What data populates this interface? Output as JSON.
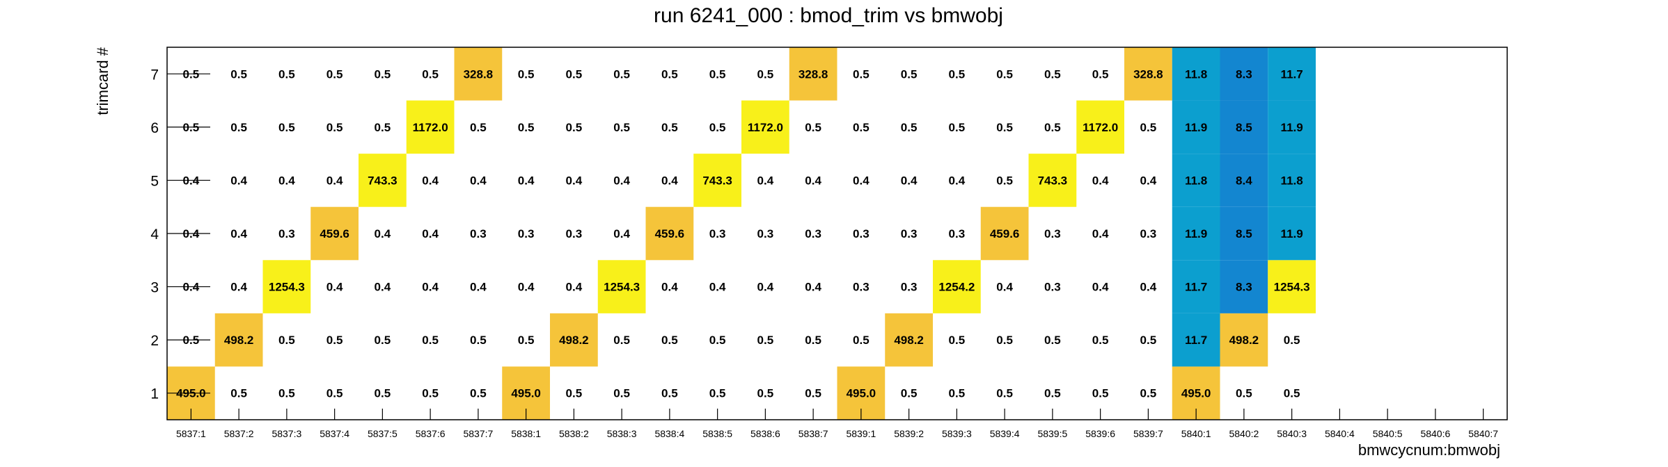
{
  "chart_data": {
    "type": "heatmap",
    "title": "run 6241_000 : bmod_trim vs bmwobj",
    "xlabel": "bmwcycnum:bmwobj",
    "ylabel": "trimcard #",
    "x_categories": [
      "5837:1",
      "5837:2",
      "5837:3",
      "5837:4",
      "5837:5",
      "5837:6",
      "5837:7",
      "5838:1",
      "5838:2",
      "5838:3",
      "5838:4",
      "5838:5",
      "5838:6",
      "5838:7",
      "5839:1",
      "5839:2",
      "5839:3",
      "5839:4",
      "5839:5",
      "5839:6",
      "5839:7",
      "5840:1",
      "5840:2",
      "5840:3",
      "5840:4",
      "5840:5",
      "5840:6",
      "5840:7"
    ],
    "y_categories": [
      "1",
      "2",
      "3",
      "4",
      "5",
      "6",
      "7"
    ],
    "grid": false,
    "rows": [
      {
        "y": "1",
        "labels": [
          "495.0",
          "0.5",
          "0.5",
          "0.5",
          "0.5",
          "0.5",
          "0.5",
          "495.0",
          "0.5",
          "0.5",
          "0.5",
          "0.5",
          "0.5",
          "0.5",
          "495.0",
          "0.5",
          "0.5",
          "0.5",
          "0.5",
          "0.5",
          "0.5",
          "495.0",
          "0.5",
          "0.5"
        ]
      },
      {
        "y": "2",
        "labels": [
          "0.5",
          "498.2",
          "0.5",
          "0.5",
          "0.5",
          "0.5",
          "0.5",
          "0.5",
          "498.2",
          "0.5",
          "0.5",
          "0.5",
          "0.5",
          "0.5",
          "0.5",
          "498.2",
          "0.5",
          "0.5",
          "0.5",
          "0.5",
          "0.5",
          "11.7",
          "498.2",
          "0.5"
        ]
      },
      {
        "y": "3",
        "labels": [
          "0.4",
          "0.4",
          "1254.3",
          "0.4",
          "0.4",
          "0.4",
          "0.4",
          "0.4",
          "0.4",
          "1254.3",
          "0.4",
          "0.4",
          "0.4",
          "0.4",
          "0.3",
          "0.3",
          "1254.2",
          "0.4",
          "0.3",
          "0.4",
          "0.4",
          "11.7",
          "8.3",
          "1254.3"
        ]
      },
      {
        "y": "4",
        "labels": [
          "0.4",
          "0.4",
          "0.3",
          "459.6",
          "0.4",
          "0.4",
          "0.3",
          "0.3",
          "0.3",
          "0.4",
          "459.6",
          "0.3",
          "0.3",
          "0.3",
          "0.3",
          "0.3",
          "0.3",
          "459.6",
          "0.3",
          "0.4",
          "0.3",
          "11.9",
          "8.5",
          "11.9"
        ]
      },
      {
        "y": "5",
        "labels": [
          "0.4",
          "0.4",
          "0.4",
          "0.4",
          "743.3",
          "0.4",
          "0.4",
          "0.4",
          "0.4",
          "0.4",
          "0.4",
          "743.3",
          "0.4",
          "0.4",
          "0.4",
          "0.4",
          "0.4",
          "0.5",
          "743.3",
          "0.4",
          "0.4",
          "11.8",
          "8.4",
          "11.8"
        ]
      },
      {
        "y": "6",
        "labels": [
          "0.5",
          "0.5",
          "0.5",
          "0.5",
          "0.5",
          "1172.0",
          "0.5",
          "0.5",
          "0.5",
          "0.5",
          "0.5",
          "0.5",
          "1172.0",
          "0.5",
          "0.5",
          "0.5",
          "0.5",
          "0.5",
          "0.5",
          "1172.0",
          "0.5",
          "11.9",
          "8.5",
          "11.9"
        ]
      },
      {
        "y": "7",
        "labels": [
          "0.5",
          "0.5",
          "0.5",
          "0.5",
          "0.5",
          "0.5",
          "328.8",
          "0.5",
          "0.5",
          "0.5",
          "0.5",
          "0.5",
          "0.5",
          "328.8",
          "0.5",
          "0.5",
          "0.5",
          "0.5",
          "0.5",
          "0.5",
          "328.8",
          "11.8",
          "8.3",
          "11.7"
        ]
      }
    ],
    "colors": {
      "cell_~330_500": "#f5c43a",
      "cell_~740_1250": "#f8f01a",
      "cell_~12": "#0c9fcf",
      "cell_~8": "#1386d0",
      "frame": "#000000"
    }
  }
}
